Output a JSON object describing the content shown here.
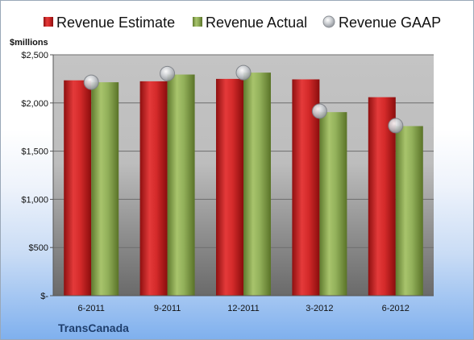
{
  "chart_data": {
    "type": "bar",
    "unit_label": "$millions",
    "company_label": "TransCanada",
    "categories": [
      "6-2011",
      "9-2011",
      "12-2011",
      "3-2012",
      "6-2012"
    ],
    "series": [
      {
        "name": "Revenue Estimate",
        "kind": "bar",
        "color": "#d42a2a",
        "values": [
          2235,
          2225,
          2250,
          2245,
          2060
        ]
      },
      {
        "name": "Revenue Actual",
        "kind": "bar",
        "color": "#8fae55",
        "values": [
          2215,
          2295,
          2315,
          1905,
          1760
        ]
      },
      {
        "name": "Revenue GAAP",
        "kind": "marker",
        "color": "#b8bcc2",
        "values": [
          2215,
          2305,
          2315,
          1915,
          1765
        ]
      }
    ],
    "ylim": [
      0,
      2500
    ],
    "yticks": [
      {
        "value": 0,
        "label": "$-"
      },
      {
        "value": 500,
        "label": "$500"
      },
      {
        "value": 1000,
        "label": "$1,000"
      },
      {
        "value": 1500,
        "label": "$1,500"
      },
      {
        "value": 2000,
        "label": "$2,000"
      },
      {
        "value": 2500,
        "label": "$2,500"
      }
    ],
    "grid": true,
    "legend_position": "top"
  }
}
